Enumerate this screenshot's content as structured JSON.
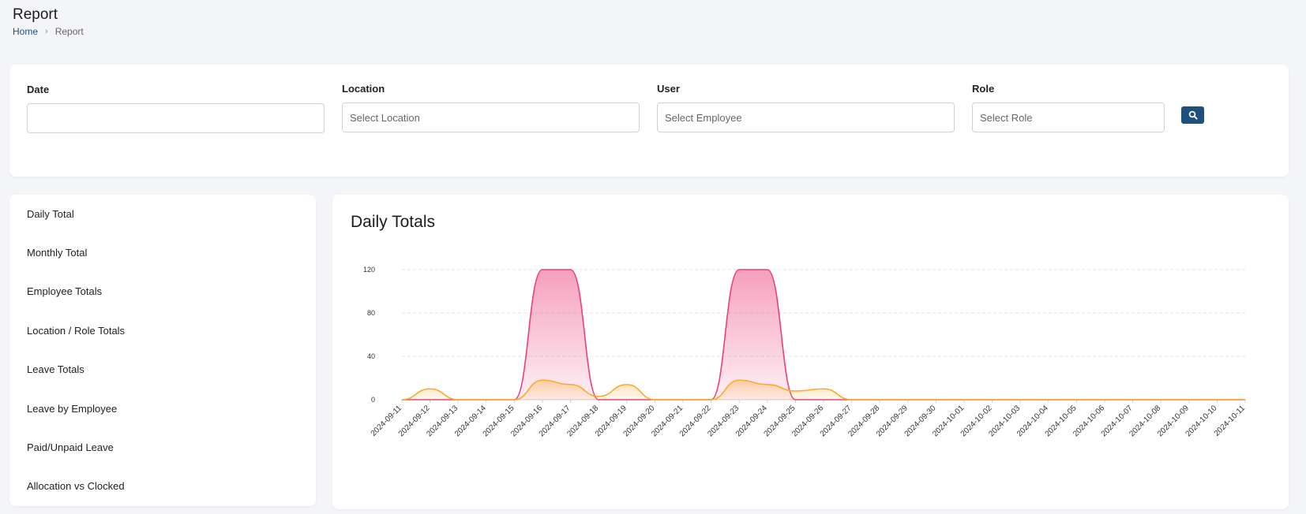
{
  "page": {
    "title": "Report",
    "breadcrumb": {
      "home": "Home",
      "separator": "›",
      "current": "Report"
    }
  },
  "filters": {
    "date": {
      "label": "Date",
      "value": "",
      "placeholder": ""
    },
    "location": {
      "label": "Location",
      "placeholder": "Select Location"
    },
    "user": {
      "label": "User",
      "placeholder": "Select Employee"
    },
    "role": {
      "label": "Role",
      "placeholder": "Select Role"
    },
    "search_icon": "search-icon"
  },
  "sidebar": {
    "items": [
      {
        "label": "Daily Total"
      },
      {
        "label": "Monthly Total"
      },
      {
        "label": "Employee Totals"
      },
      {
        "label": "Location / Role Totals"
      },
      {
        "label": "Leave Totals"
      },
      {
        "label": "Leave by Employee"
      },
      {
        "label": "Paid/Unpaid Leave"
      },
      {
        "label": "Allocation vs Clocked"
      }
    ]
  },
  "chart": {
    "title": "Daily Totals"
  },
  "chart_data": {
    "type": "area",
    "title": "Daily Totals",
    "xlabel": "",
    "ylabel": "",
    "ylim": [
      0,
      120
    ],
    "yticks": [
      0,
      40,
      80,
      120
    ],
    "grid": true,
    "legend": "none",
    "x": [
      "2024-09-11",
      "2024-09-12",
      "2024-09-13",
      "2024-09-14",
      "2024-09-15",
      "2024-09-16",
      "2024-09-17",
      "2024-09-18",
      "2024-09-19",
      "2024-09-20",
      "2024-09-21",
      "2024-09-22",
      "2024-09-23",
      "2024-09-24",
      "2024-09-25",
      "2024-09-26",
      "2024-09-27",
      "2024-09-28",
      "2024-09-29",
      "2024-09-30",
      "2024-10-01",
      "2024-10-02",
      "2024-10-03",
      "2024-10-04",
      "2024-10-05",
      "2024-10-06",
      "2024-10-07",
      "2024-10-08",
      "2024-10-09",
      "2024-10-10",
      "2024-10-11"
    ],
    "series": [
      {
        "color": "#ec407a",
        "values": [
          0,
          0,
          0,
          0,
          0,
          120,
          120,
          0,
          0,
          0,
          0,
          0,
          120,
          120,
          0,
          0,
          0,
          0,
          0,
          0,
          0,
          0,
          0,
          0,
          0,
          0,
          0,
          0,
          0,
          0,
          0
        ]
      },
      {
        "color": "#ffa726",
        "values": [
          0,
          10,
          0,
          0,
          0,
          18,
          14,
          3,
          14,
          0,
          0,
          0,
          18,
          14,
          8,
          10,
          0,
          0,
          0,
          0,
          0,
          0,
          0,
          0,
          0,
          0,
          0,
          0,
          0,
          0,
          0
        ]
      }
    ]
  }
}
